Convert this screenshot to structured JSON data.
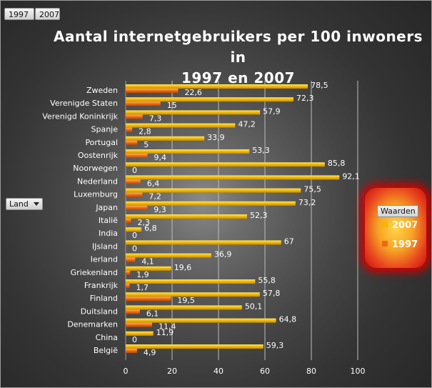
{
  "pivot": {
    "column_fields": [
      "1997",
      "2007"
    ],
    "row_field": "Land",
    "legend_title": "Waarden"
  },
  "colors": {
    "series_2007": "#f2b800",
    "series_1997": "#ee6a12",
    "gridline": "#bdbdbd",
    "legend_glow": "#d40000"
  },
  "chart_data": {
    "type": "bar",
    "orientation": "horizontal",
    "title_line1": "Aantal  internetgebruikers  per 100 inwoners  in",
    "title_line2": "1997 en 2007",
    "categories": [
      "Zweden",
      "Verenigde Staten",
      "Verenigd Koninkrijk",
      "Spanje",
      "Portugal",
      "Oostenrijk",
      "Noorwegen",
      "Nederland",
      "Luxemburg",
      "Japan",
      "Italië",
      "India",
      "IJsland",
      "Ierland",
      "Griekenland",
      "Frankrijk",
      "Finland",
      "Duitsland",
      "Denemarken",
      "China",
      "België"
    ],
    "series": [
      {
        "name": "2007",
        "values": [
          78.5,
          72.3,
          57.9,
          47.2,
          33.9,
          53.3,
          85.8,
          92.1,
          75.5,
          73.2,
          52.3,
          6.8,
          67,
          36.9,
          19.6,
          55.8,
          57.8,
          50.1,
          64.8,
          11.9,
          59.3
        ]
      },
      {
        "name": "1997",
        "values": [
          22.6,
          15,
          7.3,
          2.8,
          5,
          9.4,
          0,
          6.4,
          7.2,
          9.3,
          2.3,
          0,
          0,
          4.1,
          1.9,
          1.7,
          19.5,
          6.1,
          11.4,
          0,
          4.9
        ]
      }
    ],
    "data_labels": {
      "2007": [
        "78,5",
        "72,3",
        "57,9",
        "47,2",
        "33,9",
        "53,3",
        "85,8",
        "92,1",
        "75,5",
        "73,2",
        "52,3",
        "6,8",
        "67",
        "36,9",
        "19,6",
        "55,8",
        "57,8",
        "50,1",
        "64,8",
        "11,9",
        "59,3"
      ],
      "1997": [
        "22,6",
        "15",
        "7,3",
        "2,8",
        "5",
        "9,4",
        "0",
        "6,4",
        "7,2",
        "9,3",
        "2,3",
        "0",
        "0",
        "4,1",
        "1,9",
        "1,7",
        "19,5",
        "6,1",
        "11,4",
        "0",
        "4,9"
      ]
    },
    "x_ticks": [
      "0",
      "20",
      "40",
      "60",
      "80",
      "100"
    ],
    "xlim": [
      0,
      100
    ],
    "xlabel": "",
    "ylabel": "",
    "grid": "vertical",
    "legend": "right"
  }
}
